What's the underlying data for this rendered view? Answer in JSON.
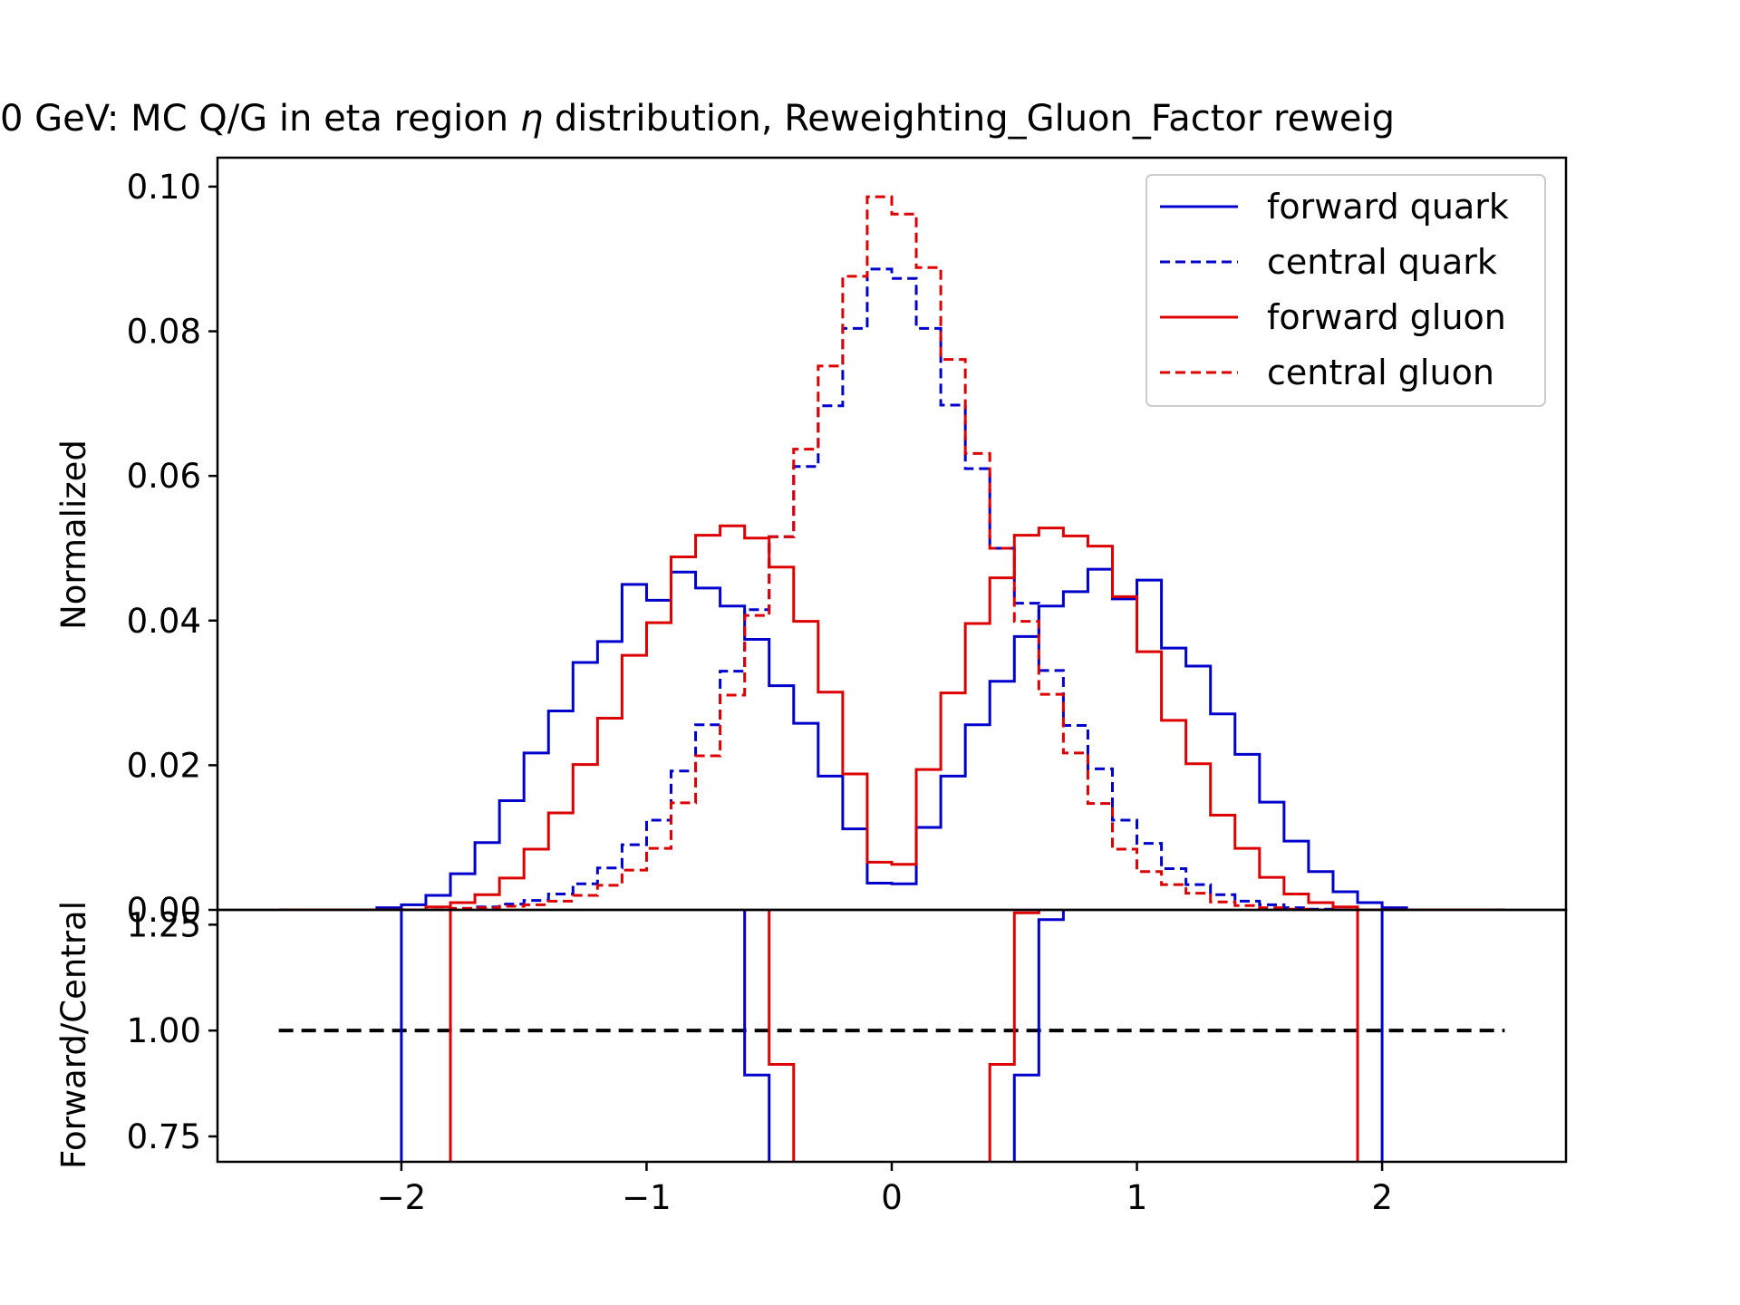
{
  "chart_data": {
    "type": "line",
    "title_visible": "0 GeV: MC Q/G in eta region ",
    "title_symbol": "η",
    "title_rest": " distribution, Reweighting_Gluon_Factor reweig",
    "colors": {
      "quark": "#0000cc",
      "gluon": "#dd0000",
      "reference": "#000000"
    },
    "top_panel": {
      "ylabel": "Normalized",
      "ylim": [
        0,
        0.104
      ],
      "yticks": [
        0.0,
        0.02,
        0.04,
        0.06,
        0.08,
        0.1
      ],
      "ytick_labels": [
        "0.00",
        "0.02",
        "0.04",
        "0.06",
        "0.08",
        "0.10"
      ],
      "bin_edges": [
        -2.5,
        -2.4,
        -2.3,
        -2.2,
        -2.1,
        -2.0,
        -1.9,
        -1.8,
        -1.7,
        -1.6,
        -1.5,
        -1.4,
        -1.3,
        -1.2,
        -1.1,
        -1.0,
        -0.9,
        -0.8,
        -0.7,
        -0.6,
        -0.5,
        -0.4,
        -0.3,
        -0.2,
        -0.1,
        0.0,
        0.1,
        0.2,
        0.3,
        0.4,
        0.5,
        0.6,
        0.7,
        0.8,
        0.9,
        1.0,
        1.1,
        1.2,
        1.3,
        1.4,
        1.5,
        1.6,
        1.7,
        1.8,
        1.9,
        2.0,
        2.1,
        2.2,
        2.3,
        2.4,
        2.5
      ],
      "legend_position": "upper right",
      "series": [
        {
          "name": "forward quark",
          "style": "solid",
          "color_key": "quark",
          "values": [
            0,
            0,
            0,
            0,
            0.0003,
            0.0007,
            0.002,
            0.005,
            0.0093,
            0.0151,
            0.0217,
            0.0275,
            0.0342,
            0.0371,
            0.045,
            0.0428,
            0.0467,
            0.0445,
            0.042,
            0.0374,
            0.031,
            0.0258,
            0.0185,
            0.0112,
            0.0037,
            0.0036,
            0.0114,
            0.0185,
            0.0256,
            0.0316,
            0.0378,
            0.042,
            0.044,
            0.0471,
            0.043,
            0.0456,
            0.0362,
            0.0337,
            0.0271,
            0.0215,
            0.0149,
            0.0095,
            0.0053,
            0.0025,
            0.001,
            0.0003,
            0,
            0,
            0,
            0
          ]
        },
        {
          "name": "central quark",
          "style": "dashed",
          "color_key": "quark",
          "values": [
            0,
            0,
            0,
            0,
            0,
            0,
            0,
            0.0002,
            0.0004,
            0.0008,
            0.0013,
            0.0022,
            0.0036,
            0.0058,
            0.009,
            0.0124,
            0.0192,
            0.0256,
            0.033,
            0.0415,
            0.0516,
            0.0613,
            0.0697,
            0.0804,
            0.0886,
            0.0873,
            0.0804,
            0.0698,
            0.061,
            0.05,
            0.0424,
            0.0331,
            0.0255,
            0.0195,
            0.0124,
            0.0092,
            0.0057,
            0.0035,
            0.0021,
            0.0012,
            0.0007,
            0.0003,
            0.0001,
            0,
            0,
            0,
            0,
            0,
            0,
            0
          ]
        },
        {
          "name": "forward gluon",
          "style": "solid",
          "color_key": "gluon",
          "values": [
            0,
            0,
            0,
            0,
            0,
            0,
            0.0004,
            0.001,
            0.0021,
            0.0044,
            0.0084,
            0.0134,
            0.0201,
            0.0265,
            0.0352,
            0.0397,
            0.0488,
            0.0518,
            0.0531,
            0.0514,
            0.0474,
            0.0399,
            0.0301,
            0.0188,
            0.0066,
            0.0063,
            0.0194,
            0.03,
            0.0396,
            0.0459,
            0.0518,
            0.0528,
            0.0517,
            0.0503,
            0.0433,
            0.0357,
            0.0262,
            0.0202,
            0.0131,
            0.0085,
            0.0045,
            0.0022,
            0.001,
            0.0004,
            0,
            0,
            0,
            0,
            0,
            0
          ]
        },
        {
          "name": "central gluon",
          "style": "dashed",
          "color_key": "gluon",
          "values": [
            0,
            0,
            0,
            0,
            0,
            0,
            0,
            0.0002,
            0.0003,
            0.0005,
            0.0007,
            0.0012,
            0.002,
            0.0034,
            0.0055,
            0.0085,
            0.0148,
            0.0213,
            0.0297,
            0.0407,
            0.0516,
            0.0637,
            0.0752,
            0.0876,
            0.0986,
            0.0962,
            0.0888,
            0.0761,
            0.0631,
            0.05,
            0.0399,
            0.0298,
            0.0217,
            0.0147,
            0.0084,
            0.0053,
            0.0035,
            0.0023,
            0.0011,
            0.0006,
            0.0003,
            0.0001,
            0,
            0,
            0,
            0,
            0,
            0,
            0,
            0
          ]
        }
      ]
    },
    "bottom_panel": {
      "ylabel": "Forward/Central",
      "ylim": [
        0.69,
        1.285
      ],
      "yticks": [
        0.75,
        1.0,
        1.25
      ],
      "ytick_labels": [
        "0.75",
        "1.00",
        "1.25"
      ],
      "reference_line": {
        "y": 1.0,
        "x_range": [
          -2.5,
          2.5
        ],
        "style": "dashed"
      },
      "series": [
        {
          "name": "quark ratio",
          "color_key": "quark",
          "steps": [
            [
              -2.0,
              -0.6,
              1.29
            ],
            [
              -0.6,
              -0.5,
              0.895
            ],
            [
              0.5,
              0.6,
              0.895
            ],
            [
              0.6,
              0.7,
              1.262
            ],
            [
              0.7,
              2.0,
              1.29
            ]
          ]
        },
        {
          "name": "gluon ratio",
          "color_key": "gluon",
          "steps": [
            [
              -1.8,
              -0.5,
              1.29
            ],
            [
              -0.5,
              -0.4,
              0.92
            ],
            [
              0.4,
              0.5,
              0.92
            ],
            [
              0.5,
              0.6,
              1.278
            ],
            [
              0.6,
              1.9,
              1.29
            ]
          ]
        }
      ]
    },
    "x_axis": {
      "xlim": [
        -2.75,
        2.75
      ],
      "xticks": [
        -2,
        -1,
        0,
        1,
        2
      ],
      "xtick_labels": [
        "−2",
        "−1",
        "0",
        "1",
        "2"
      ],
      "xlabel": ""
    }
  }
}
